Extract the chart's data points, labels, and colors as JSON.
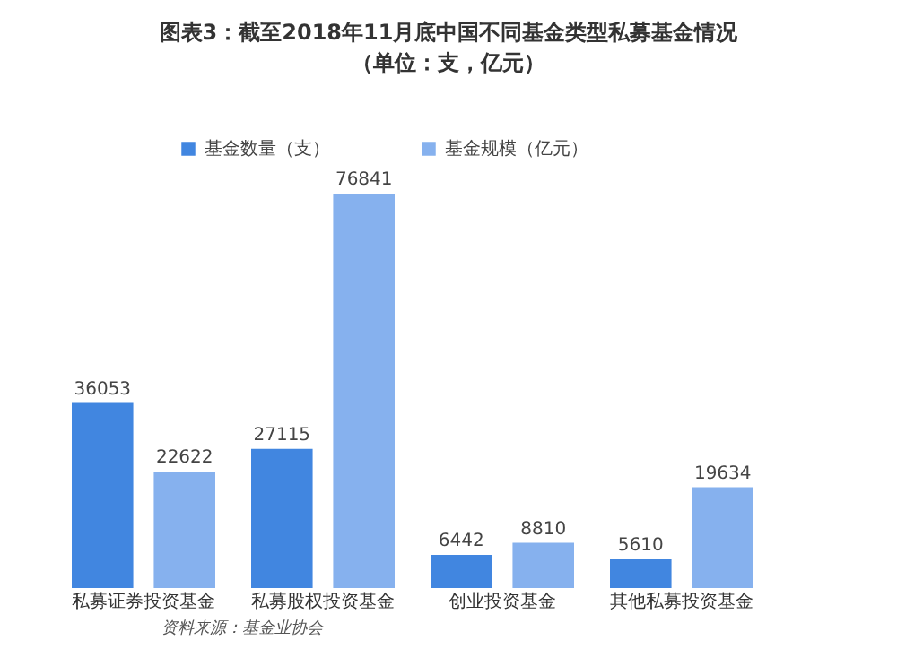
{
  "chart_data": {
    "type": "bar",
    "title": "图表3：截至2018年11月底中国不同基金类型私募基金情况（单位：支，亿元）",
    "categories": [
      "私募证券投资基金",
      "私募股权投资基金",
      "创业投资基金",
      "其他私募投资基金"
    ],
    "series": [
      {
        "name": "基金数量（支）",
        "color": "#4186e0",
        "values": [
          36053,
          27115,
          6442,
          5610
        ]
      },
      {
        "name": "基金规模（亿元）",
        "color": "#86b1ee",
        "values": [
          22622,
          76841,
          8810,
          19634
        ]
      }
    ],
    "data_labels": true,
    "legend": "top",
    "grid": false,
    "annotations": [
      "资料来源：基金业协会"
    ]
  }
}
